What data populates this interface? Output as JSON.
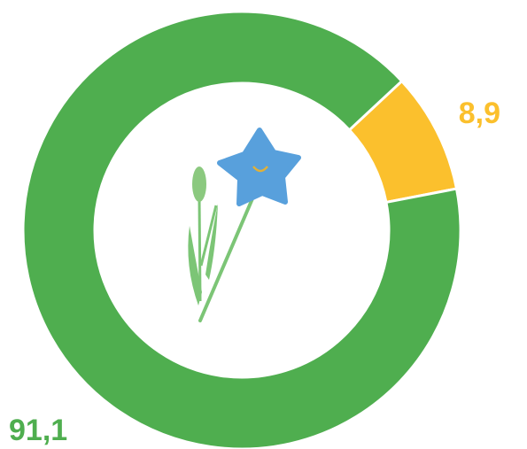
{
  "chart_data": {
    "type": "donut",
    "values": [
      8.9,
      91.1
    ],
    "value_labels": [
      "8,9",
      "91,1"
    ],
    "colors": [
      "#fbc02d",
      "#4fae4f"
    ]
  }
}
